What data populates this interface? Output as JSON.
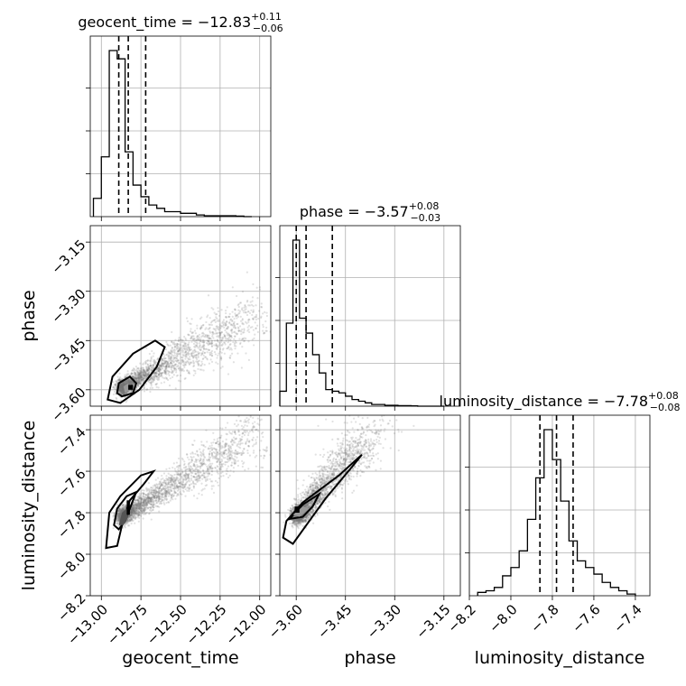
{
  "chart_data": {
    "type": "corner",
    "parameters": [
      "geocent_time",
      "phase",
      "luminosity_distance"
    ],
    "axes_ranges": {
      "geocent_time": [
        -13.07,
        -11.93
      ],
      "phase": [
        -3.65,
        -3.1
      ],
      "luminosity_distance": [
        -8.2,
        -7.33
      ]
    },
    "ticks": {
      "geocent_time": [
        -13.0,
        -12.75,
        -12.5,
        -12.25,
        -12.0
      ],
      "phase": [
        -3.6,
        -3.45,
        -3.3,
        -3.15
      ],
      "luminosity_distance": [
        -8.2,
        -8.0,
        -7.8,
        -7.6,
        -7.4
      ]
    },
    "tick_labels": {
      "geocent_time": [
        "−13.00",
        "−12.75",
        "−12.50",
        "−12.25",
        "−12.00"
      ],
      "phase": [
        "−3.60",
        "−3.45",
        "−3.30",
        "−3.15"
      ],
      "luminosity_distance": [
        "−8.2",
        "−8.0",
        "−7.8",
        "−7.6",
        "−7.4"
      ]
    },
    "titles": [
      {
        "param": "geocent_time",
        "main": "geocent_time = −12.83",
        "sup": "+0.11",
        "sub": "−0.06"
      },
      {
        "param": "phase",
        "main": "phase = −3.57",
        "sup": "+0.08",
        "sub": "−0.03"
      },
      {
        "param": "luminosity_distance",
        "main": "luminosity_distance = −7.78",
        "sup": "+0.08",
        "sub": "−0.08"
      }
    ],
    "quantiles": {
      "geocent_time": [
        -12.89,
        -12.83,
        -12.72
      ],
      "phase": [
        -3.6,
        -3.57,
        -3.49
      ],
      "luminosity_distance": [
        -7.86,
        -7.78,
        -7.7
      ]
    },
    "histograms": {
      "geocent_time": {
        "edges": [
          -13.05,
          -13.0,
          -12.95,
          -12.9,
          -12.85,
          -12.8,
          -12.75,
          -12.7,
          -12.65,
          -12.6,
          -12.55,
          -12.5,
          -12.45,
          -12.4,
          -12.35,
          -12.3,
          -12.25,
          -12.2,
          -12.15,
          -12.1,
          -12.05
        ],
        "counts": [
          0.11,
          0.36,
          1.0,
          0.95,
          0.39,
          0.19,
          0.12,
          0.07,
          0.05,
          0.03,
          0.03,
          0.02,
          0.02,
          0.01,
          0.005,
          0.005,
          0.005,
          0.005,
          0.003,
          0.0
        ]
      },
      "phase": {
        "edges": [
          -3.65,
          -3.63,
          -3.61,
          -3.59,
          -3.57,
          -3.55,
          -3.53,
          -3.51,
          -3.49,
          -3.47,
          -3.45,
          -3.43,
          -3.41,
          -3.39,
          -3.37,
          -3.35,
          -3.33,
          -3.31,
          -3.29,
          -3.27,
          -3.25,
          -3.23,
          -3.21,
          -3.19,
          -3.17,
          -3.15
        ],
        "counts": [
          0.09,
          0.5,
          1.0,
          0.53,
          0.44,
          0.31,
          0.2,
          0.1,
          0.09,
          0.08,
          0.06,
          0.04,
          0.03,
          0.02,
          0.01,
          0.01,
          0.005,
          0.005,
          0.003,
          0.003,
          0.002,
          0.0,
          0.0,
          0.0,
          0.0
        ]
      },
      "luminosity_distance": {
        "edges": [
          -8.16,
          -8.12,
          -8.08,
          -8.04,
          -8.0,
          -7.96,
          -7.92,
          -7.88,
          -7.84,
          -7.8,
          -7.76,
          -7.72,
          -7.68,
          -7.64,
          -7.6,
          -7.56,
          -7.52,
          -7.48,
          -7.44,
          -7.4
        ],
        "counts": [
          0.02,
          0.03,
          0.05,
          0.12,
          0.17,
          0.27,
          0.46,
          0.71,
          1.0,
          0.82,
          0.57,
          0.33,
          0.21,
          0.17,
          0.13,
          0.08,
          0.05,
          0.03,
          0.01
        ]
      }
    },
    "axis_labels": {
      "x": [
        "geocent_time",
        "phase",
        "luminosity_distance"
      ],
      "y": [
        "phase",
        "luminosity_distance"
      ]
    },
    "grid": true,
    "colors": {
      "line": "#000000",
      "scatter": "#777777",
      "grid": "#b0b0b0"
    }
  }
}
